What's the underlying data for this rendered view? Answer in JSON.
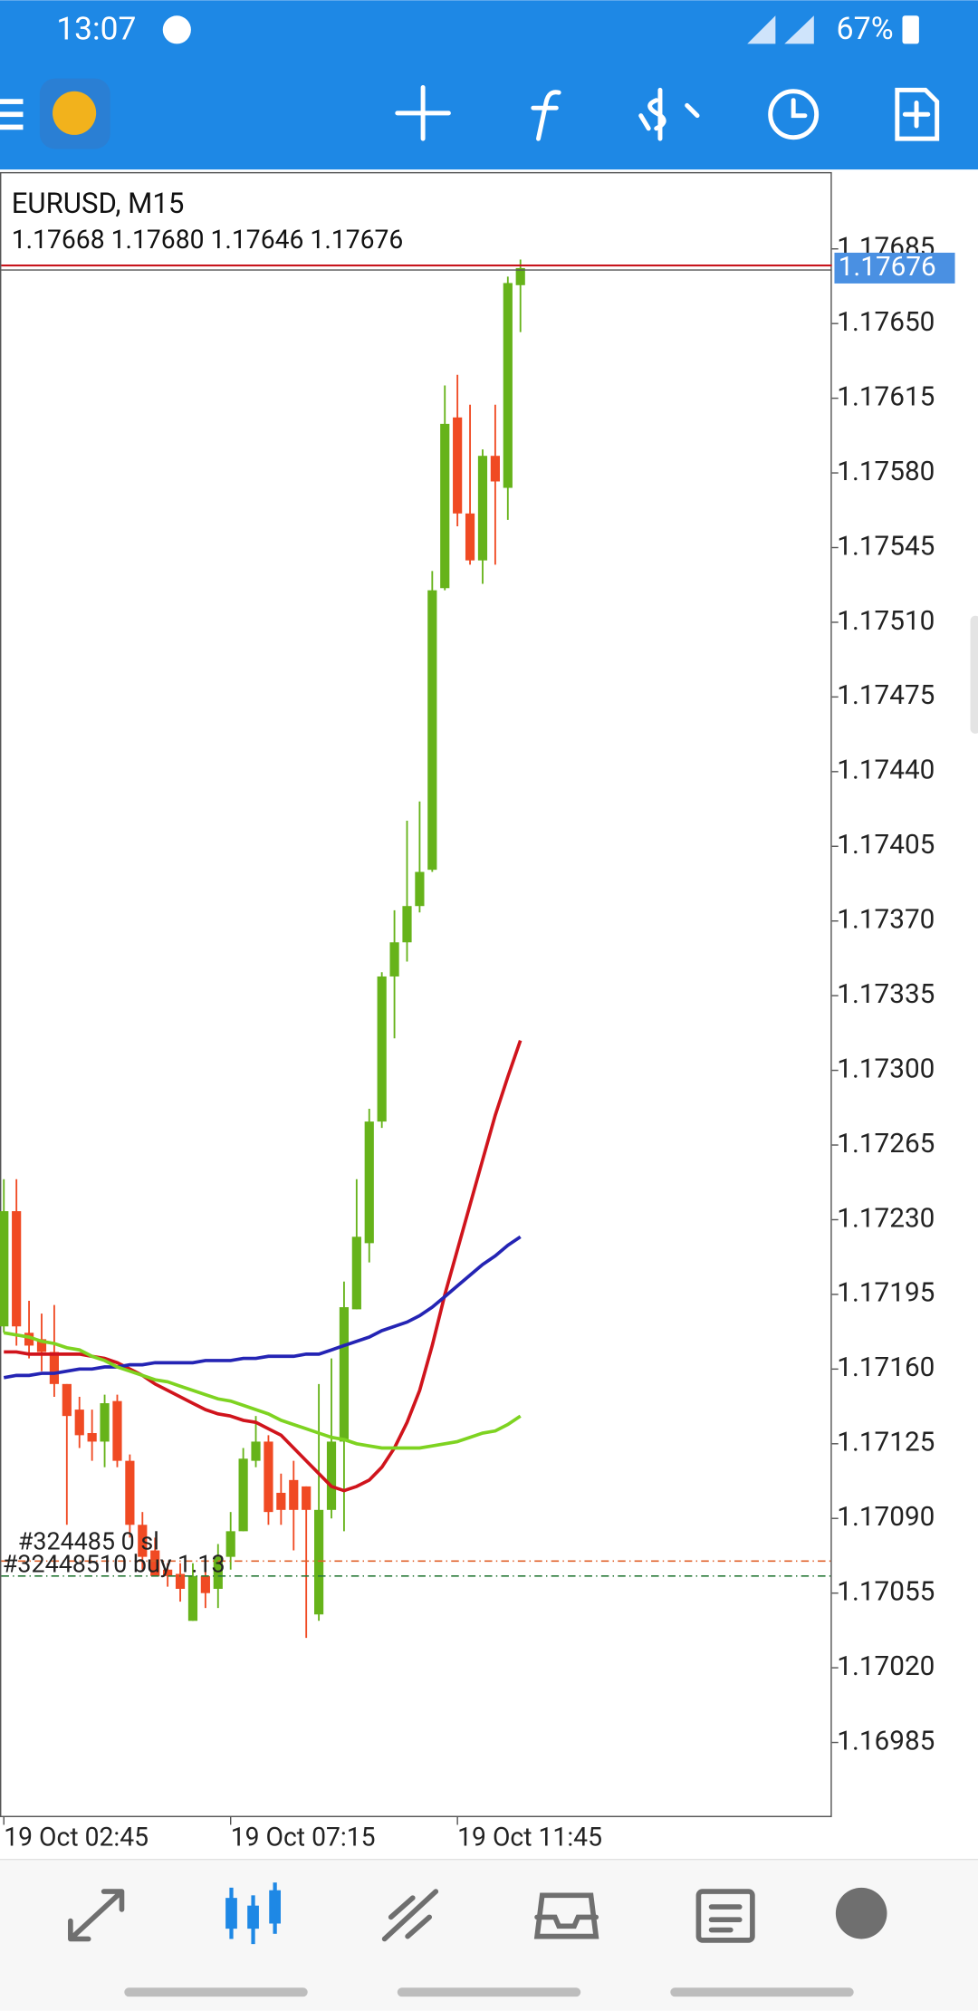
{
  "status_bar": {
    "time": "13:07",
    "battery": "67%"
  },
  "chart_data": {
    "type": "candlestick",
    "title": "EURUSD, M15",
    "subtitle": "1.17668 1.17680 1.17646 1.17676",
    "categories": [
      "19 Oct 02:45",
      null,
      null,
      null,
      null,
      null,
      null,
      null,
      null,
      null,
      null,
      null,
      null,
      null,
      null,
      null,
      null,
      null,
      "19 Oct 07:15",
      null,
      null,
      null,
      null,
      null,
      null,
      null,
      null,
      null,
      null,
      null,
      null,
      null,
      null,
      null,
      null,
      null,
      "19 Oct 11:45",
      null,
      null,
      null,
      null,
      null
    ],
    "open": [
      1.1718,
      1.17234,
      1.17177,
      1.17174,
      1.17168,
      1.17153,
      1.17141,
      1.1713,
      1.17126,
      1.17145,
      1.17117,
      1.17087,
      1.17075,
      1.17066,
      1.17064,
      1.17042,
      1.17063,
      1.17057,
      1.17072,
      1.17084,
      1.17117,
      1.17126,
      1.17102,
      1.17108,
      1.17105,
      1.17045,
      1.17094,
      1.17126,
      1.17188,
      1.17219,
      1.17276,
      1.17344,
      1.1736,
      1.17377,
      1.17394,
      1.17526,
      1.17606,
      1.17561,
      1.17539,
      1.17588,
      1.17573,
      1.17668
    ],
    "high": [
      1.17249,
      1.17249,
      1.17192,
      1.17186,
      1.1719,
      1.17153,
      1.17147,
      1.17141,
      1.17148,
      1.17148,
      1.1712,
      1.17093,
      1.17081,
      1.17069,
      1.17069,
      1.17069,
      1.17066,
      1.17078,
      1.17093,
      1.17123,
      1.17138,
      1.17129,
      1.17111,
      1.17117,
      1.17105,
      1.17153,
      1.17165,
      1.17201,
      1.17249,
      1.17282,
      1.17346,
      1.17375,
      1.17417,
      1.17426,
      1.17534,
      1.17621,
      1.17626,
      1.17612,
      1.17591,
      1.17612,
      1.17672,
      1.1768
    ],
    "low": [
      1.17177,
      1.17171,
      1.17165,
      1.17159,
      1.17147,
      1.17087,
      1.17123,
      1.17117,
      1.17114,
      1.17114,
      1.17081,
      1.17066,
      1.17063,
      1.17058,
      1.17051,
      1.17042,
      1.17048,
      1.17048,
      1.17066,
      1.17084,
      1.17114,
      1.17087,
      1.17087,
      1.17075,
      1.17034,
      1.17042,
      1.1709,
      1.17084,
      1.17188,
      1.1721,
      1.17273,
      1.17315,
      1.17351,
      1.17374,
      1.17393,
      1.17525,
      1.17555,
      1.17537,
      1.17528,
      1.17537,
      1.17558,
      1.17646
    ],
    "close": [
      1.17234,
      1.1718,
      1.17171,
      1.17168,
      1.17153,
      1.17138,
      1.17129,
      1.17126,
      1.17144,
      1.17117,
      1.17087,
      1.17072,
      1.17063,
      1.17063,
      1.17057,
      1.17063,
      1.17055,
      1.17072,
      1.17084,
      1.17118,
      1.17126,
      1.17093,
      1.17094,
      1.17094,
      1.17094,
      1.17094,
      1.17126,
      1.17189,
      1.17222,
      1.17276,
      1.17344,
      1.1736,
      1.17377,
      1.17393,
      1.17525,
      1.17603,
      1.17561,
      1.17539,
      1.17588,
      1.17576,
      1.17669,
      1.17676
    ],
    "up_color": "#66b31a",
    "down_color": "#f04a23",
    "series": [
      {
        "color": "#d0141c",
        "values": [
          1.17168,
          1.17168,
          1.17167,
          1.17167,
          1.17167,
          1.17167,
          1.17167,
          1.17166,
          1.17165,
          1.17163,
          1.1716,
          1.17157,
          1.17153,
          1.1715,
          1.17147,
          1.17144,
          1.17141,
          1.17139,
          1.17138,
          1.17136,
          1.17135,
          1.17132,
          1.17129,
          1.17123,
          1.17117,
          1.17111,
          1.17105,
          1.17103,
          1.17105,
          1.17108,
          1.17114,
          1.17123,
          1.17135,
          1.1715,
          1.17171,
          1.17195,
          1.17216,
          1.17237,
          1.17258,
          1.17279,
          1.17297,
          1.17314
        ]
      },
      {
        "color": "#2424b4",
        "values": [
          1.17156,
          1.17157,
          1.17157,
          1.17158,
          1.17158,
          1.17159,
          1.1716,
          1.1716,
          1.17161,
          1.17161,
          1.17162,
          1.17162,
          1.17163,
          1.17163,
          1.17163,
          1.17163,
          1.17164,
          1.17164,
          1.17164,
          1.17165,
          1.17165,
          1.17166,
          1.17166,
          1.17166,
          1.17167,
          1.17167,
          1.17169,
          1.17171,
          1.17173,
          1.17175,
          1.17178,
          1.1718,
          1.17182,
          1.17185,
          1.17189,
          1.17194,
          1.17199,
          1.17204,
          1.17209,
          1.17213,
          1.17218,
          1.17222
        ]
      },
      {
        "color": "#7ed321",
        "values": [
          1.17177,
          1.17176,
          1.17175,
          1.17173,
          1.17172,
          1.1717,
          1.17169,
          1.17166,
          1.17164,
          1.17161,
          1.17159,
          1.17157,
          1.17155,
          1.17154,
          1.17152,
          1.1715,
          1.17148,
          1.17146,
          1.17145,
          1.17143,
          1.17141,
          1.17139,
          1.17136,
          1.17134,
          1.17132,
          1.1713,
          1.17128,
          1.17127,
          1.17125,
          1.17124,
          1.17123,
          1.17123,
          1.17123,
          1.17123,
          1.17124,
          1.17125,
          1.17126,
          1.17128,
          1.1713,
          1.17131,
          1.17134,
          1.17138
        ]
      }
    ],
    "bid": 1.17676,
    "bid_color": "#c8141c",
    "orders": [
      {
        "label": "#324485 0 sl",
        "price": 1.1707,
        "color": "#e0602a"
      },
      {
        "label": "#32448510 buy 1.13",
        "price": 1.17063,
        "color": "#2a7a3a"
      }
    ],
    "ylim": [
      1.1695,
      1.17721
    ],
    "yticks": [
      1.17685,
      {
        "value": 1.1765,
        "label": "1.17650"
      },
      1.17615,
      {
        "value": 1.1758,
        "label": "1.17580"
      },
      1.17545,
      {
        "value": 1.1751,
        "label": "1.17510"
      },
      1.17475,
      {
        "value": 1.1744,
        "label": "1.17440"
      },
      1.17405,
      {
        "value": 1.1737,
        "label": "1.17370"
      },
      1.17335,
      {
        "value": 1.173,
        "label": "1.17300"
      },
      1.17265,
      {
        "value": 1.1723,
        "label": "1.17230"
      },
      1.17195,
      {
        "value": 1.1716,
        "label": "1.17160"
      },
      1.17125,
      {
        "value": 1.1709,
        "label": "1.17090"
      },
      1.17055,
      {
        "value": 1.1702,
        "label": "1.17020"
      },
      1.16985
    ]
  }
}
